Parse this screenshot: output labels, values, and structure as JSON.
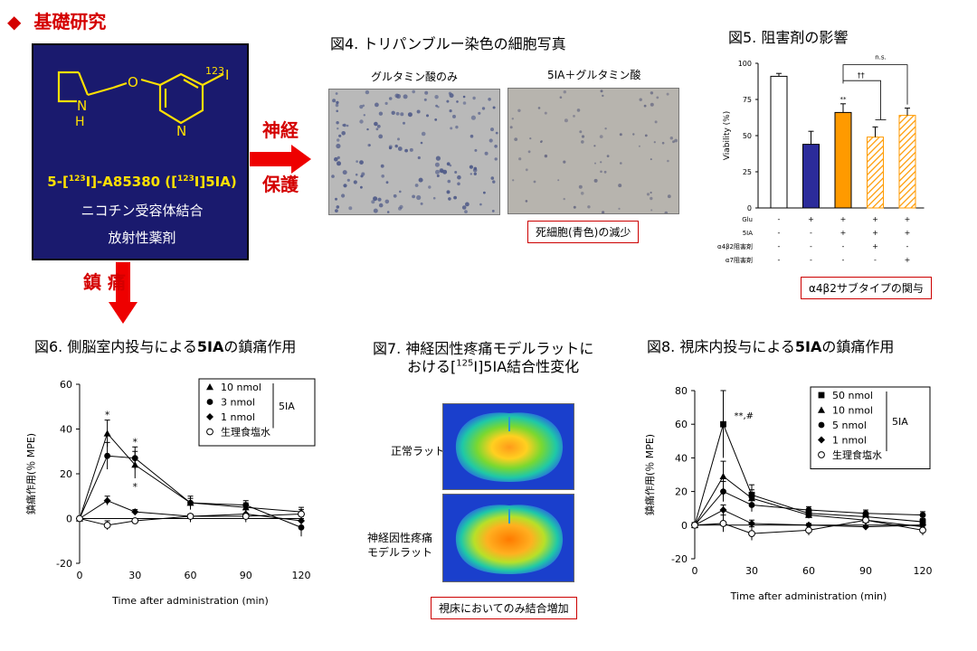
{
  "section_title": {
    "diamond": "◆",
    "text": "基礎研究"
  },
  "compound": {
    "atom_n": "N",
    "atom_h": "H",
    "atom_o": "O",
    "atom_n_ring": "N",
    "isotope": "123",
    "atom_i": "I",
    "name_prefix": "5-[",
    "name_sup1": "123",
    "name_mid": "I]-A85380 ([",
    "name_sup2": "123",
    "name_suffix": "I]5IA)",
    "desc1": "ニコチン受容体結合",
    "desc2": "放射性薬剤"
  },
  "arrow_right_label": {
    "line1": "神経",
    "line2": "保護"
  },
  "arrow_down_label": "鎮 痛",
  "fig4": {
    "title": "図4. トリパンブルー染色の細胞写真",
    "left_label": "グルタミン酸のみ",
    "right_label": "5IA＋グルタミン酸",
    "note": "死細胞(青色)の減少"
  },
  "fig5": {
    "title": "図5. 阻害剤の影響",
    "note": "α4β2サブタイプの関与",
    "chart_data": {
      "type": "bar",
      "ylabel": "Viability (%)",
      "ylim": [
        0,
        100
      ],
      "yticks": [
        "0",
        "25",
        "50",
        "75",
        "100"
      ],
      "values": [
        91,
        44,
        66,
        49,
        64
      ],
      "errors": [
        2,
        9,
        6,
        7,
        5
      ],
      "colors": [
        "#ffffff",
        "#2b2b9a",
        "#ff9a00",
        "hatch",
        "hatch"
      ],
      "annotations": {
        "star": "**",
        "dagger": "††",
        "ns": "n.s."
      },
      "rows": [
        {
          "label": "Glu",
          "cells": [
            "-",
            "+",
            "+",
            "+",
            "+"
          ]
        },
        {
          "label": "5IA",
          "cells": [
            "-",
            "-",
            "+",
            "+",
            "+"
          ]
        },
        {
          "label": "α4β2阻害剤",
          "cells": [
            "-",
            "-",
            "-",
            "+",
            "-"
          ]
        },
        {
          "label": "α7阻害剤",
          "cells": [
            "-",
            "-",
            "-",
            "-",
            "+"
          ]
        }
      ]
    }
  },
  "fig6": {
    "title_pre": "図6. 側脳室内投与による",
    "title_bold": "5IA",
    "title_post": "の鎮痛作用",
    "chart_data": {
      "type": "line",
      "xlabel": "Time after administration (min)",
      "ylabel": "鎮痛作用(％ MPE)",
      "xlim": [
        0,
        120
      ],
      "ylim": [
        -20,
        60
      ],
      "xticks": [
        "0",
        "30",
        "60",
        "90",
        "120"
      ],
      "yticks": [
        "-20",
        "0",
        "20",
        "40",
        "60"
      ],
      "x": [
        0,
        15,
        30,
        60,
        90,
        120
      ],
      "series": [
        {
          "name": "10 nmol",
          "marker": "triangle",
          "values": [
            0,
            38,
            24,
            7,
            5,
            3
          ],
          "errors": [
            0,
            6,
            6,
            2,
            2,
            2
          ]
        },
        {
          "name": "3 nmol",
          "marker": "circle",
          "values": [
            0,
            28,
            27,
            7,
            6,
            -4
          ],
          "errors": [
            0,
            6,
            5,
            3,
            2,
            4
          ]
        },
        {
          "name": "1 nmol",
          "marker": "diamond",
          "values": [
            0,
            8,
            3,
            1,
            2,
            -1
          ],
          "errors": [
            0,
            2,
            1,
            1,
            2,
            2
          ]
        },
        {
          "name": "生理食塩水",
          "marker": "open-circle",
          "values": [
            0,
            -3,
            -1,
            1,
            1,
            2
          ],
          "errors": [
            0,
            2,
            1,
            1,
            1,
            2
          ]
        }
      ],
      "legend_group": "5IA",
      "stars": [
        "*",
        "*",
        "*"
      ]
    }
  },
  "fig7": {
    "title_line1": "図7. 神経因性疼痛モデルラットに",
    "title_line2_pre": "おける[",
    "title_sup": "125",
    "title_line2_post": "I]5IA結合性変化",
    "label_top": "正常ラット",
    "label_bottom_1": "神経因性疼痛",
    "label_bottom_2": "モデルラット",
    "note": "視床においてのみ結合増加"
  },
  "fig8": {
    "title_pre": "図8. 視床内投与による",
    "title_bold": "5IA",
    "title_post": "の鎮痛作用",
    "chart_data": {
      "type": "line",
      "xlabel": "Time after administration (min)",
      "ylabel": "鎮痛作用(％ MPE)",
      "xlim": [
        0,
        120
      ],
      "ylim": [
        -20,
        80
      ],
      "xticks": [
        "0",
        "30",
        "60",
        "90",
        "120"
      ],
      "yticks": [
        "-20",
        "0",
        "20",
        "40",
        "60",
        "80"
      ],
      "x": [
        0,
        15,
        30,
        60,
        90,
        120
      ],
      "series": [
        {
          "name": "50 nmol",
          "marker": "square",
          "values": [
            0,
            60,
            18,
            7,
            5,
            2
          ],
          "errors": [
            0,
            20,
            6,
            2,
            2,
            2
          ]
        },
        {
          "name": "10 nmol",
          "marker": "triangle",
          "values": [
            0,
            29,
            16,
            6,
            3,
            -1
          ],
          "errors": [
            0,
            9,
            5,
            2,
            2,
            2
          ]
        },
        {
          "name": "5 nmol",
          "marker": "circle",
          "values": [
            0,
            20,
            12,
            9,
            7,
            6
          ],
          "errors": [
            0,
            6,
            4,
            2,
            2,
            2
          ]
        },
        {
          "name": "1 nmol",
          "marker": "diamond",
          "values": [
            0,
            9,
            1,
            0,
            -1,
            0
          ],
          "errors": [
            0,
            3,
            2,
            1,
            1,
            2
          ]
        },
        {
          "name": "生理食塩水",
          "marker": "open-circle",
          "values": [
            0,
            1,
            -5,
            -3,
            3,
            -3
          ],
          "errors": [
            0,
            5,
            4,
            3,
            2,
            3
          ]
        }
      ],
      "legend_group": "5IA",
      "annotation": "**,#"
    }
  }
}
